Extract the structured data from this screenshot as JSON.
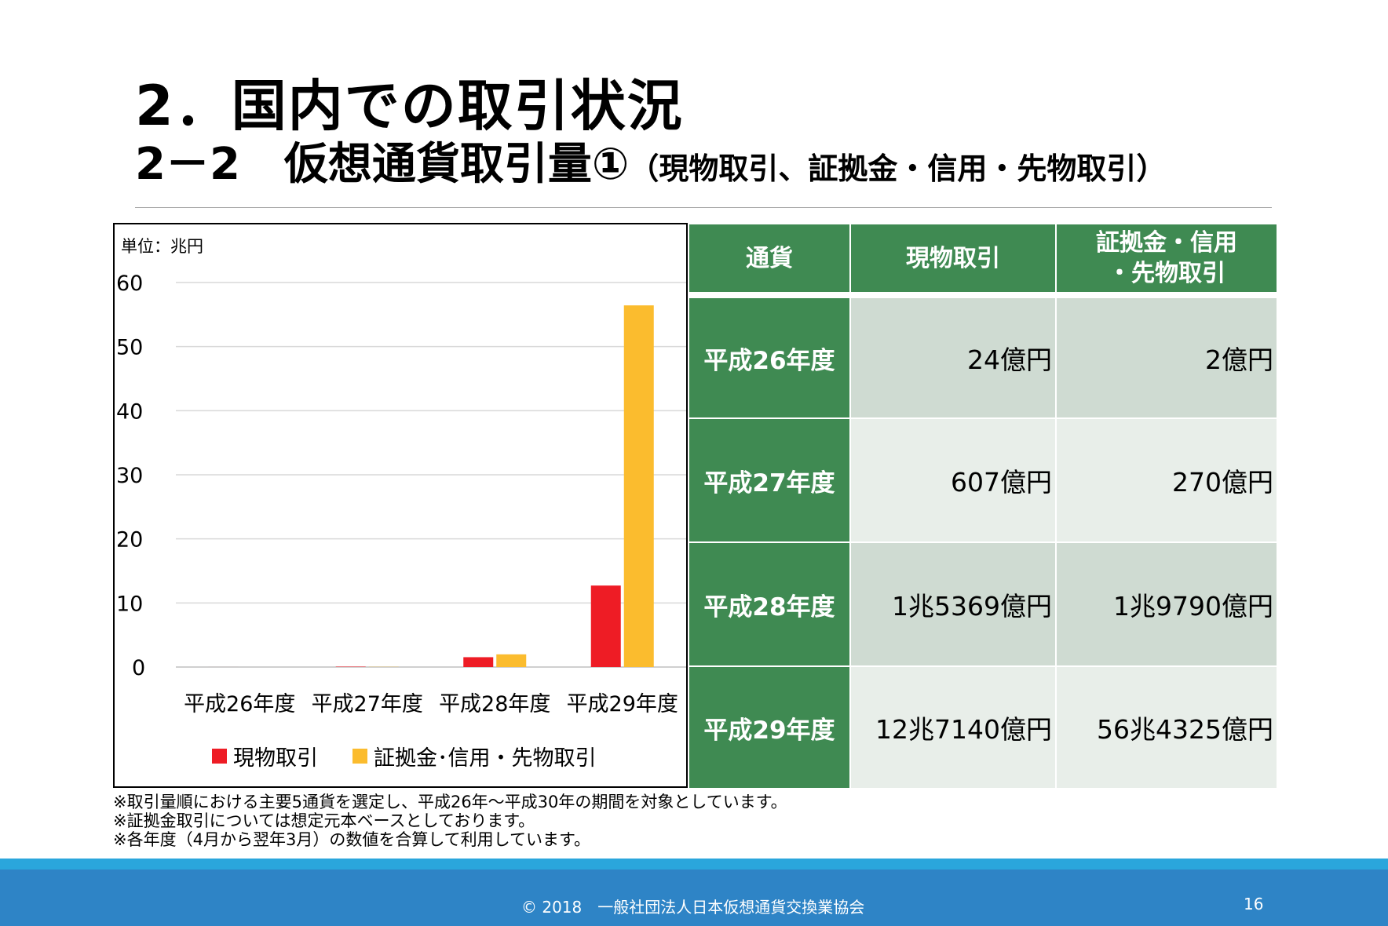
{
  "title": {
    "main": "2．国内での取引状況",
    "sub_main": "2－2　仮想通貨取引量①",
    "sub_paren": "（現物取引、証拠金・信用・先物取引）"
  },
  "colors": {
    "spot": "#ee1c25",
    "margin": "#fbbc2e",
    "table_header": "#3f8a52",
    "footer": "#2e84c6"
  },
  "chart_data": {
    "type": "bar",
    "unit_label": "単位：兆円",
    "categories": [
      "平成26年度",
      "平成27年度",
      "平成28年度",
      "平成29年度"
    ],
    "series": [
      {
        "name": "現物取引",
        "values": [
          0.0024,
          0.0607,
          1.5369,
          12.714
        ]
      },
      {
        "name": "証拠金･信用・先物取引",
        "values": [
          0.0002,
          0.027,
          1.979,
          56.4325
        ]
      }
    ],
    "ylim": [
      0,
      60
    ],
    "yticks": [
      "0",
      "10",
      "20",
      "30",
      "40",
      "50",
      "60"
    ],
    "grid": true,
    "legend": "bottom"
  },
  "table": {
    "headers": [
      "通貨",
      "現物取引",
      "証拠金・信用\n・先物取引"
    ],
    "rows": [
      {
        "label": "平成26年度",
        "spot": "24億円",
        "margin": "2億円"
      },
      {
        "label": "平成27年度",
        "spot": "607億円",
        "margin": "270億円"
      },
      {
        "label": "平成28年度",
        "spot": "1兆5369億円",
        "margin": "1兆9790億円"
      },
      {
        "label": "平成29年度",
        "spot": "12兆7140億円",
        "margin": "56兆4325億円"
      }
    ]
  },
  "notes": [
    "※取引量順における主要5通貨を選定し、平成26年～平成30年の期間を対象としています。",
    "※証拠金取引については想定元本ベースとしております。",
    "※各年度（4月から翌年3月）の数値を合算して利用しています。"
  ],
  "footer": {
    "copyright": "© 2018　一般社団法人日本仮想通貨交換業協会",
    "page": "16"
  }
}
